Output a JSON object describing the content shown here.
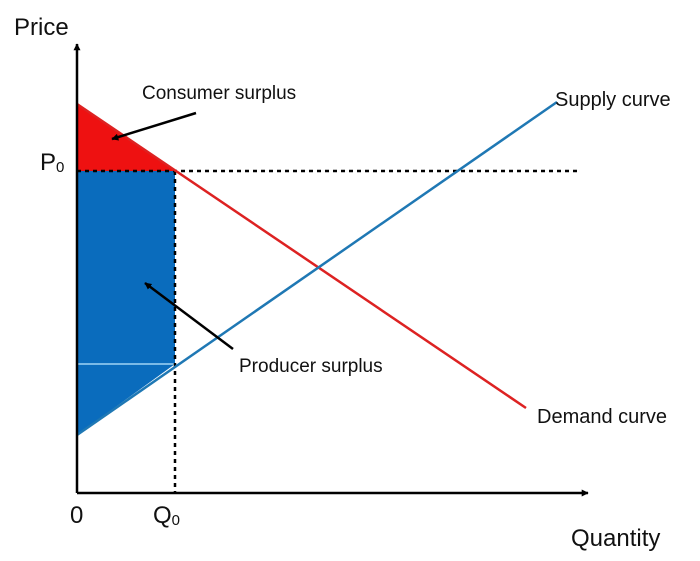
{
  "labels": {
    "y_axis": "Price",
    "x_axis": "Quantity",
    "origin": "0",
    "price_letter": "P",
    "price_sub": "0",
    "qty_letter": "Q",
    "qty_sub": "0",
    "consumer_surplus": "Consumer surplus",
    "producer_surplus": "Producer surplus",
    "supply_curve": "Supply curve",
    "demand_curve": "Demand curve"
  },
  "colors": {
    "consumer_surplus": "#ee1111",
    "producer_surplus": "#0a6cbd",
    "supply_line": "#1f78b4",
    "demand_line": "#dd2222",
    "axes": "#000000",
    "reference_lines": "#000000"
  }
}
